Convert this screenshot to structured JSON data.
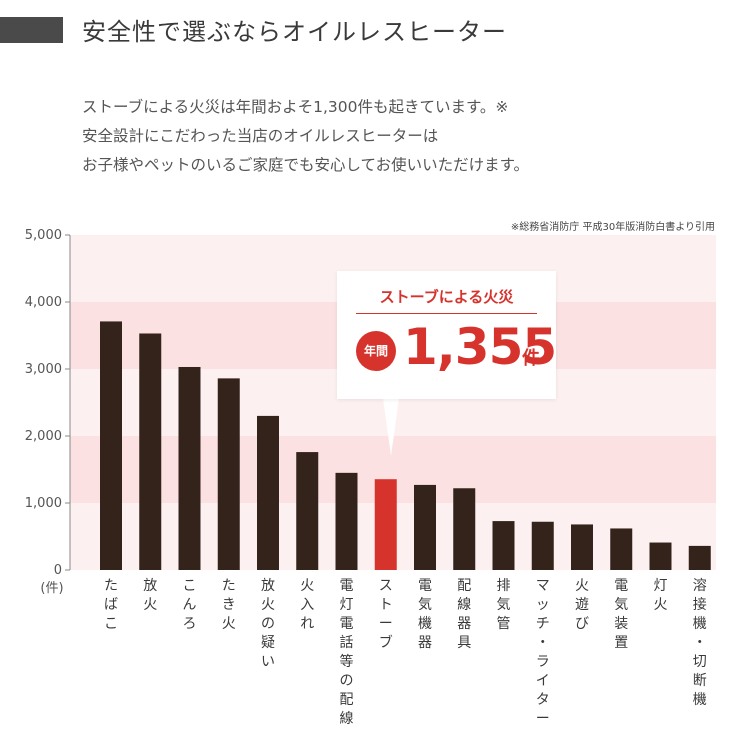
{
  "header": {
    "title": "安全性で選ぶならオイルレスヒーター"
  },
  "intro": {
    "lines": [
      "ストーブによる火災は年間およそ1,300件も起きています。※",
      "安全設計にこだわった当店のオイルレスヒーターは",
      "お子様やペットのいるご家庭でも安心してお使いいただけます。"
    ]
  },
  "source_note": "※総務省消防庁 平成30年版消防白書より引用",
  "callout": {
    "title": "ストーブによる火災",
    "badge": "年間",
    "value": "1,355",
    "unit": "件"
  },
  "colors": {
    "bar": "#33231b",
    "highlight": "#d6332d",
    "band": "#fbe1e1",
    "band_light": "#fdf0f0"
  },
  "chart_data": {
    "type": "bar",
    "title": "",
    "xlabel": "",
    "ylabel": "(件)",
    "ylim": [
      0,
      5000
    ],
    "yticks": [
      "0",
      "1,000",
      "2,000",
      "3,000",
      "4,000",
      "5,000"
    ],
    "categories": [
      "たばこ",
      "放火",
      "こんろ",
      "たき火",
      "放火の疑い",
      "火入れ",
      "電灯電話等の配線",
      "ストーブ",
      "電気機器",
      "配線器具",
      "排気管",
      "マッチ・ライター",
      "火遊び",
      "電気装置",
      "灯火",
      "溶接機・切断機"
    ],
    "values": [
      3710,
      3530,
      3030,
      2860,
      2300,
      1760,
      1450,
      1355,
      1270,
      1220,
      730,
      720,
      680,
      620,
      410,
      360
    ],
    "highlight_index": 7,
    "grid": false
  }
}
